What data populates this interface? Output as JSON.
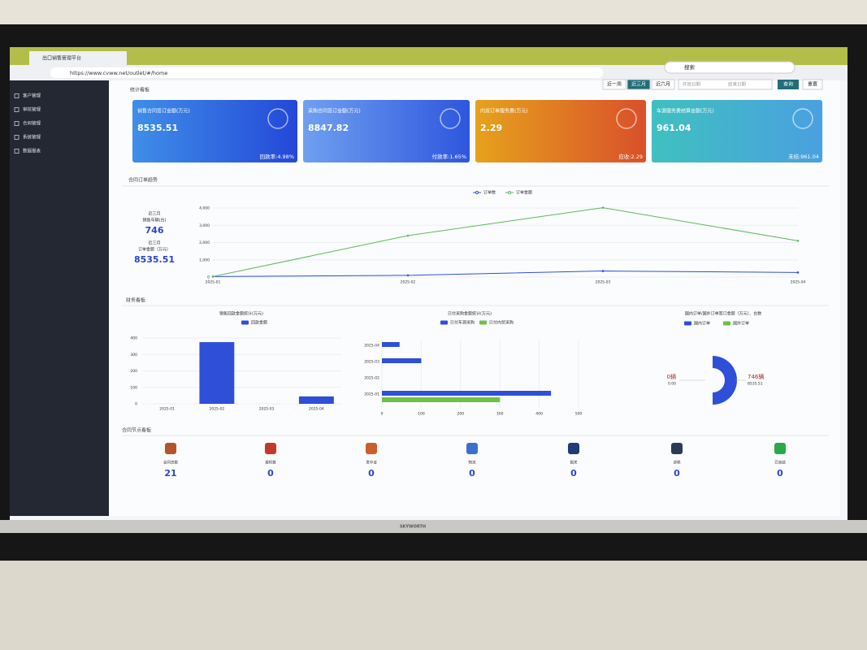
{
  "browser": {
    "tab_title": "出口销售管理平台",
    "url": "https://www.cvww.net/outlet/#/home",
    "search": "搜索"
  },
  "sidebar": {
    "items": [
      "客户管理",
      "审核管理",
      "合同管理",
      "系统管理",
      "数据报表"
    ]
  },
  "filters": {
    "section_title": "统计看板",
    "ranges": [
      "近一周",
      "近三月",
      "近六月"
    ],
    "active_range": 1,
    "start_placeholder": "开始日期",
    "end_placeholder": "结束日期",
    "query": "查询",
    "reset": "重置"
  },
  "cards": [
    {
      "title": "销售合同签订金额(万元)",
      "value": 8535.51,
      "note": "回款率:4.98%"
    },
    {
      "title": "采购合同签订金额(万元)",
      "value": 8847.82,
      "note": "付款率:1.65%"
    },
    {
      "title": "内贸订单服务费(万元)",
      "value": 2.29,
      "note": "应收:2.29"
    },
    {
      "title": "车源服务费结算金额(万元)",
      "value": 961.04,
      "note": "未结:961.04"
    }
  ],
  "trend": {
    "section_title": "合同订单趋势",
    "stats": [
      {
        "period": "近三月",
        "label": "销售车辆(台)",
        "value": 746
      },
      {
        "period": "近三月",
        "label": "订单金额（万元）",
        "value": 8535.51
      }
    ]
  },
  "finance": {
    "section_title": "财务看板"
  },
  "chart_data": [
    {
      "type": "line",
      "categories": [
        "2025-01",
        "2025-02",
        "2025-03",
        "2025-04"
      ],
      "series": [
        {
          "name": "订单数",
          "color": "#2f4fd8",
          "values": [
            30,
            100,
            350,
            266
          ]
        },
        {
          "name": "订单金额",
          "color": "#5cb85c",
          "values": [
            30,
            2400,
            4020,
            2100
          ]
        }
      ],
      "ylim": [
        0,
        4000
      ],
      "yticks": [
        0,
        {
          "value": 1000,
          "label": "1,000"
        },
        {
          "value": 2000,
          "label": "2,000"
        },
        {
          "value": 3000,
          "label": "3,000"
        },
        {
          "value": 4000,
          "label": "4,000"
        }
      ],
      "grid": true,
      "legend": "top"
    },
    {
      "type": "bar",
      "title": "销售回款金额统计(万元)",
      "categories": [
        "2025-01",
        "2025-02",
        "2025-03",
        "2025-04"
      ],
      "series": [
        {
          "name": "回款金额",
          "color": "#2f4fd8",
          "values": [
            0,
            375,
            0,
            45
          ]
        }
      ],
      "ylim": [
        0,
        400
      ],
      "yticks": [
        0,
        100,
        200,
        300,
        400
      ],
      "grid": true,
      "legend": "top"
    },
    {
      "type": "hbar",
      "title": "已付采购金额统计(万元)",
      "categories": [
        "2025-01",
        "2025-02",
        "2025-03",
        "2025-04"
      ],
      "series": [
        {
          "name": "已付车源采购",
          "color": "#2f4fd8",
          "values": [
            430,
            0,
            100,
            45
          ]
        },
        {
          "name": "已付内贸采购",
          "color": "#6cc04a",
          "values": [
            300,
            0,
            0,
            0
          ]
        }
      ],
      "xlim": [
        0,
        500
      ],
      "xticks": [
        0,
        100,
        200,
        300,
        400,
        500
      ],
      "grid": true,
      "legend": "top"
    },
    {
      "type": "pie",
      "title": "国内订单/国外订单签订金额（万元）、台数",
      "categories": [
        "国内订单",
        "国外订单"
      ],
      "colors": [
        "#2f4fd8",
        "#6cc04a"
      ],
      "values": [
        8535.51,
        0
      ],
      "value_labels": [
        "8535.51",
        "0.00"
      ],
      "counts": [
        746,
        0
      ],
      "count_labels": [
        "746辆",
        "0辆"
      ],
      "legend": "top"
    }
  ],
  "nodes": {
    "section_title": "合同节点看板",
    "items": [
      {
        "label": "合同总数",
        "value": 21,
        "color": "#b5532b"
      },
      {
        "label": "报检数",
        "value": 0,
        "color": "#c0392b"
      },
      {
        "label": "发中证",
        "value": 0,
        "color": "#c8602a"
      },
      {
        "label": "物流",
        "value": 0,
        "color": "#3a6fd0"
      },
      {
        "label": "报关",
        "value": 0,
        "color": "#1f3c78"
      },
      {
        "label": "退税",
        "value": 0,
        "color": "#2b3a55"
      },
      {
        "label": "已完结",
        "value": 0,
        "color": "#2aa84a"
      }
    ]
  },
  "monitor": {
    "brand": "SKYWORTH"
  }
}
